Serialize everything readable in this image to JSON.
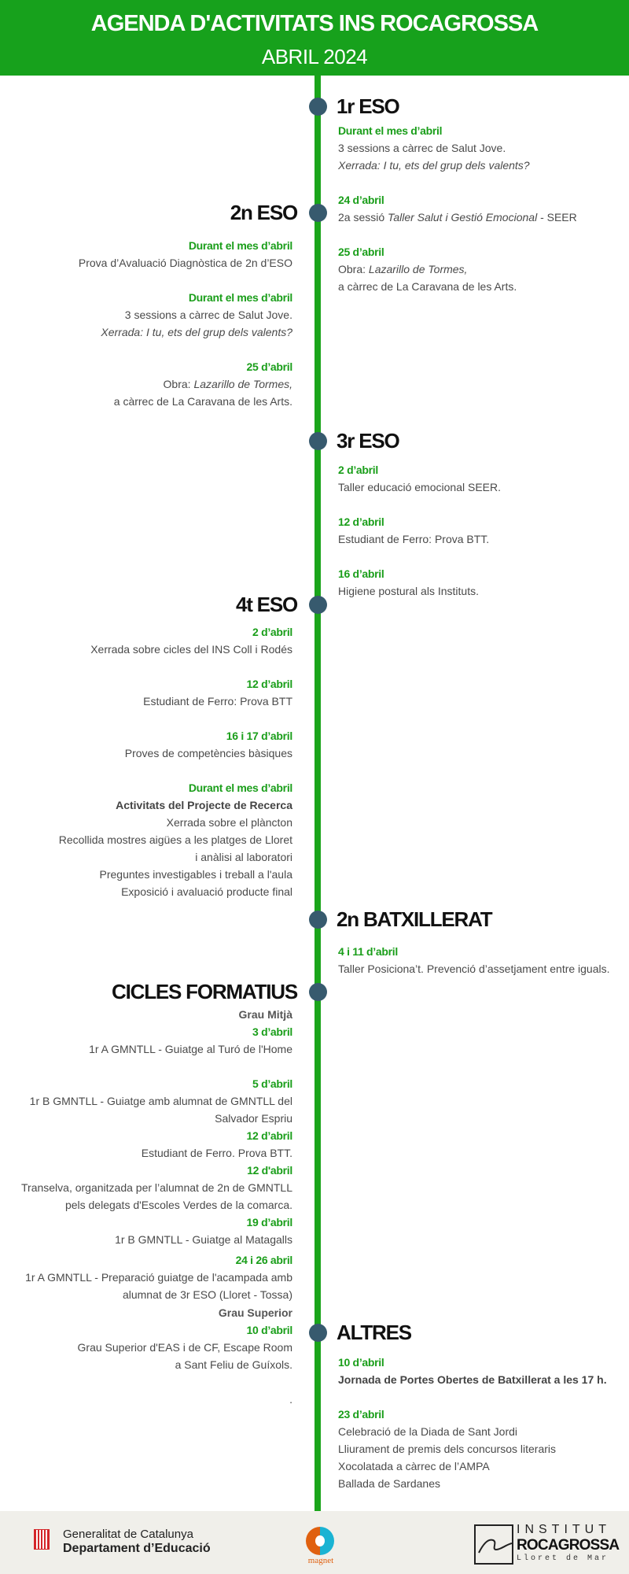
{
  "header": {
    "title": "AGENDA D'ACTIVITATS INS ROCAGROSSA",
    "subtitle": "ABRIL 2024"
  },
  "colors": {
    "header_bg": "#17a11c",
    "timeline": "#1aa51a",
    "dot": "#375a6e",
    "date": "#1a9e1a",
    "footer_bg": "#f0efea"
  },
  "sections": [
    {
      "title": "1r ESO",
      "side": "right",
      "entries": [
        {
          "date": "Durant el mes d’abril",
          "lines": [
            [
              {
                "t": "3 sessions a càrrec de Salut Jove."
              }
            ],
            [
              {
                "t": "Xerrada: I tu, ets del grup dels valents?",
                "s": "i"
              }
            ]
          ]
        },
        {
          "date": "24 d’abril",
          "lines": [
            [
              {
                "t": "2a sessió "
              },
              {
                "t": "Taller Salut i Gestió Emocional",
                "s": "i"
              },
              {
                "t": "  - SEER"
              }
            ]
          ]
        },
        {
          "date": "25 d’abril",
          "lines": [
            [
              {
                "t": "Obra: "
              },
              {
                "t": "Lazarillo de Tormes,",
                "s": "i"
              }
            ],
            [
              {
                "t": "a càrrec de La Caravana de les Arts."
              }
            ]
          ]
        }
      ]
    },
    {
      "title": "2n ESO",
      "side": "left",
      "entries": [
        {
          "date": "Durant el mes d’abril",
          "lines": [
            [
              {
                "t": "Prova d’Avaluació Diagnòstica de 2n d’ESO"
              }
            ]
          ]
        },
        {
          "date": "Durant el mes d’abril",
          "lines": [
            [
              {
                "t": "3 sessions a càrrec de Salut Jove."
              }
            ],
            [
              {
                "t": "Xerrada: I tu, ets del grup dels valents?",
                "s": "i"
              }
            ]
          ]
        },
        {
          "date": "25 d’abril",
          "lines": [
            [
              {
                "t": "Obra: "
              },
              {
                "t": "Lazarillo de Tormes,",
                "s": "i"
              }
            ],
            [
              {
                "t": "a càrrec de La Caravana de les Arts."
              }
            ]
          ]
        }
      ]
    },
    {
      "title": "3r ESO",
      "side": "right",
      "entries": [
        {
          "date": "2 d’abril",
          "lines": [
            [
              {
                "t": "Taller educació emocional SEER."
              }
            ]
          ]
        },
        {
          "date": "12 d’abril",
          "lines": [
            [
              {
                "t": "Estudiant de Ferro: Prova BTT."
              }
            ]
          ]
        },
        {
          "date": "16 d’abril",
          "lines": [
            [
              {
                "t": "Higiene postural als Instituts."
              }
            ]
          ]
        }
      ]
    },
    {
      "title": "4t ESO",
      "side": "left",
      "entries": [
        {
          "date": "2 d’abril",
          "lines": [
            [
              {
                "t": "Xerrada sobre cicles del INS Coll i Rodés"
              }
            ]
          ]
        },
        {
          "date": "12 d’abril",
          "lines": [
            [
              {
                "t": "Estudiant de Ferro: Prova BTT"
              }
            ]
          ]
        },
        {
          "date": "16 i 17 d’abril",
          "lines": [
            [
              {
                "t": "Proves de competències bàsiques"
              }
            ]
          ]
        },
        {
          "date": "Durant el mes d’abril",
          "lines": [
            [
              {
                "t": "Activitats del Projecte de Recerca",
                "s": "b"
              }
            ],
            [
              {
                "t": "Xerrada sobre el plàncton"
              }
            ],
            [
              {
                "t": "Recollida mostres aigües a les platges de Lloret"
              }
            ],
            [
              {
                "t": "i anàlisi al laboratori"
              }
            ],
            [
              {
                "t": "Preguntes investigables i treball a l'aula"
              }
            ],
            [
              {
                "t": "Exposició i avaluació producte final"
              }
            ]
          ]
        }
      ]
    },
    {
      "title": "2n BATXILLERAT",
      "side": "right",
      "entries": [
        {
          "date": "4 i 11 d’abril",
          "lines": [
            [
              {
                "t": "Taller Posiciona’t. Prevenció d’assetjament entre iguals."
              }
            ]
          ]
        }
      ]
    },
    {
      "title": "CICLES FORMATIUS",
      "side": "left",
      "entries": [
        {
          "heading": "Grau Mitjà",
          "date": "3 d’abril",
          "lines": [
            [
              {
                "t": "1r A GMNTLL - Guiatge al Turó de l'Home"
              }
            ]
          ]
        },
        {
          "date": "5 d’abril",
          "lines": [
            [
              {
                "t": "1r B GMNTLL - Guiatge amb alumnat de GMNTLL del"
              }
            ],
            [
              {
                "t": "Salvador Espriu"
              }
            ]
          ]
        },
        {
          "date": "12 d’abril",
          "lines": [
            [
              {
                "t": "Estudiant de Ferro. Prova BTT."
              }
            ]
          ]
        },
        {
          "date": "12 d'abril",
          "lines": [
            [
              {
                "t": "Transelva, organitzada per l’alumnat de 2n de GMNTLL"
              }
            ],
            [
              {
                "t": "pels delegats d'Escoles Verdes de la comarca."
              }
            ]
          ]
        },
        {
          "date": "19 d’abril",
          "lines": [
            [
              {
                "t": "1r B GMNTLL - Guiatge al Matagalls"
              }
            ]
          ]
        },
        {
          "date": "24 i 26 abril",
          "lines": [
            [
              {
                "t": "1r A GMNTLL - Preparació guiatge de l'acampada amb"
              }
            ],
            [
              {
                "t": "alumnat de 3r ESO (Lloret - Tossa)"
              }
            ]
          ]
        },
        {
          "heading": "Grau Superior",
          "date": "10 d’abril",
          "lines": [
            [
              {
                "t": "Grau Superior d'EAS i de CF, Escape Room"
              }
            ],
            [
              {
                "t": "a Sant Feliu de Guíxols."
              }
            ],
            [
              {
                "t": ""
              }
            ],
            [
              {
                "t": "."
              }
            ]
          ]
        }
      ]
    },
    {
      "title": "ALTRES",
      "side": "right",
      "entries": [
        {
          "date": "10 d’abril",
          "lines": [
            [
              {
                "t": "Jornada de Portes Obertes de Batxillerat a les 17 h.",
                "s": "b"
              }
            ]
          ]
        },
        {
          "date": "23 d’abril",
          "lines": [
            [
              {
                "t": "Celebració de la Diada de Sant Jordi"
              }
            ],
            [
              {
                "t": "Lliurament de premis dels concursos literaris"
              }
            ],
            [
              {
                "t": "Xocolatada a càrrec de l’AMPA"
              }
            ],
            [
              {
                "t": "Ballada de Sardanes"
              }
            ]
          ]
        }
      ]
    }
  ],
  "footer": {
    "generalitat": {
      "line1": "Generalitat de Catalunya",
      "line2": "Departament d’Educació"
    },
    "magnet": "magnet",
    "institut": {
      "line1": "INSTITUT",
      "line2": "ROCAGROSSA",
      "line3": "Lloret de Mar"
    }
  }
}
